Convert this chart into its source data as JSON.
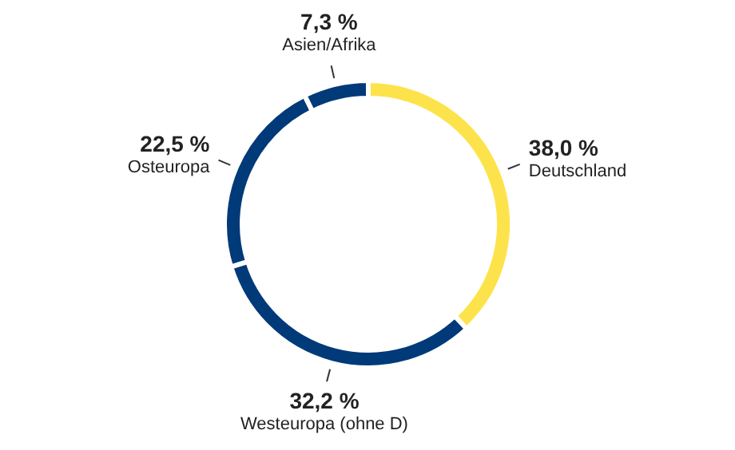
{
  "chart_data": {
    "type": "donut",
    "categories": [
      "Deutschland",
      "Westeuropa (ohne D)",
      "Osteuropa",
      "Asien/Afrika"
    ],
    "values": [
      38.0,
      32.2,
      22.5,
      7.3
    ],
    "colors": [
      "#fde34b",
      "#003a78",
      "#003a78",
      "#003a78"
    ],
    "value_labels": [
      "38,0 %",
      "32,2 %",
      "22,5 %",
      "7,3 %"
    ],
    "legend": false
  }
}
